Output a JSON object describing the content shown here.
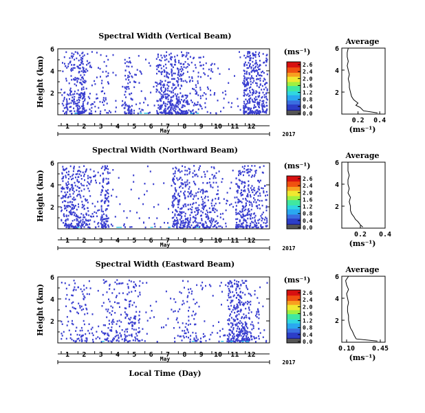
{
  "chart_data": [
    {
      "type": "heatmap",
      "title": "Spectral Width (Vertical Beam)",
      "ylabel": "Height (km)",
      "xlabel": "May",
      "year_label": "2017",
      "y_ticks": [
        "6",
        "4",
        "2"
      ],
      "ylim": [
        0,
        6
      ],
      "x_day_labels": [
        "1",
        "2",
        "3",
        "4",
        "5",
        "6",
        "7",
        "8",
        "9",
        "10",
        "11",
        "12"
      ],
      "density": [
        0.25,
        0.45,
        0.85,
        0.2,
        0.12,
        0.18,
        0.05,
        0.03,
        0.45,
        0.1,
        0.07,
        0.05,
        0.55,
        0.75,
        0.6,
        0.55,
        0.25,
        0.2,
        0.12,
        0.06,
        0.04,
        0.04,
        0.05,
        0.9,
        0.75,
        0.5
      ],
      "colorbar": {
        "unit": "(ms⁻¹)",
        "ticks": [
          "2.6",
          "2.4",
          "2.0",
          "1.6",
          "1.2",
          "0.8",
          "0.4",
          "0.0"
        ]
      },
      "average": {
        "title": "Average",
        "unit": "(ms⁻¹)",
        "x_ticks": [
          "0.2",
          "0.4"
        ],
        "xlim": [
          0.05,
          0.45
        ],
        "y_ticks": [
          "6",
          "4",
          "2"
        ],
        "profile_height": [
          0.1,
          0.3,
          0.6,
          0.8,
          1.0,
          1.3,
          1.6,
          2.0,
          2.4,
          2.8,
          3.2,
          3.6,
          4.0,
          4.4,
          4.8,
          5.2,
          5.6,
          6.0
        ],
        "profile_value": [
          0.38,
          0.25,
          0.22,
          0.18,
          0.2,
          0.16,
          0.14,
          0.13,
          0.12,
          0.12,
          0.11,
          0.12,
          0.11,
          0.1,
          0.11,
          0.1,
          0.1,
          0.11
        ]
      }
    },
    {
      "type": "heatmap",
      "title": "Spectral Width (Northward Beam)",
      "ylabel": "Height (km)",
      "xlabel": "May",
      "year_label": "2017",
      "y_ticks": [
        "6",
        "4",
        "2"
      ],
      "ylim": [
        0,
        6
      ],
      "x_day_labels": [
        "1",
        "2",
        "3",
        "4",
        "5",
        "6",
        "7",
        "8",
        "9",
        "10",
        "11",
        "12"
      ],
      "density": [
        0.6,
        0.55,
        0.5,
        0.3,
        0.15,
        0.7,
        0.05,
        0.03,
        0.04,
        0.03,
        0.05,
        0.04,
        0.03,
        0.03,
        0.6,
        0.55,
        0.45,
        0.4,
        0.35,
        0.3,
        0.1,
        0.05,
        0.6,
        0.55,
        0.4,
        0.3
      ],
      "colorbar": {
        "unit": "(ms⁻¹)",
        "ticks": [
          "2.6",
          "2.4",
          "2.0",
          "1.6",
          "1.2",
          "0.8",
          "0.4",
          "0.0"
        ]
      },
      "average": {
        "title": "Average",
        "unit": "(ms⁻¹)",
        "x_ticks": [
          "0.2",
          "0.4"
        ],
        "xlim": [
          0.05,
          0.4
        ],
        "y_ticks": [
          "6",
          "4",
          "2"
        ],
        "profile_height": [
          0.1,
          0.3,
          0.6,
          0.8,
          1.0,
          1.3,
          1.6,
          2.0,
          2.4,
          2.8,
          3.2,
          3.6,
          4.0,
          4.4,
          4.8,
          5.2,
          5.6,
          6.0
        ],
        "profile_value": [
          0.22,
          0.2,
          0.18,
          0.16,
          0.15,
          0.13,
          0.12,
          0.12,
          0.11,
          0.12,
          0.1,
          0.11,
          0.1,
          0.1,
          0.11,
          0.1,
          0.1,
          0.1
        ]
      }
    },
    {
      "type": "heatmap",
      "title": "Spectral Width (Eastward Beam)",
      "ylabel": "Height (km)",
      "xlabel": "May",
      "xlabel2": "Local Time (Day)",
      "year_label": "2017",
      "y_ticks": [
        "6",
        "4",
        "2"
      ],
      "ylim": [
        0,
        6
      ],
      "x_day_labels": [
        "1",
        "2",
        "3",
        "4",
        "5",
        "6",
        "7",
        "8",
        "9",
        "10",
        "11",
        "12"
      ],
      "density": [
        0.1,
        0.2,
        0.25,
        0.15,
        0.05,
        0.2,
        0.25,
        0.2,
        0.35,
        0.3,
        0.05,
        0.03,
        0.02,
        0.03,
        0.1,
        0.15,
        0.2,
        0.1,
        0.05,
        0.04,
        0.1,
        0.6,
        0.75,
        0.5,
        0.2,
        0.05
      ],
      "colorbar": {
        "unit": "(ms⁻¹)",
        "ticks": [
          "2.6",
          "2.4",
          "2.0",
          "1.6",
          "1.2",
          "0.8",
          "0.4",
          "0.0"
        ]
      },
      "average": {
        "title": "Average",
        "unit": "(ms⁻¹)",
        "x_ticks": [
          "0.10",
          "0.45"
        ],
        "xlim": [
          0.05,
          0.5
        ],
        "y_ticks": [
          "6",
          "4",
          "2"
        ],
        "profile_height": [
          0.1,
          0.3,
          0.6,
          0.8,
          1.0,
          1.3,
          1.6,
          2.0,
          2.4,
          2.8,
          3.2,
          3.6,
          4.0,
          4.4,
          4.8,
          5.2,
          5.6,
          6.0
        ],
        "profile_value": [
          0.42,
          0.2,
          0.18,
          0.17,
          0.16,
          0.14,
          0.13,
          0.12,
          0.12,
          0.11,
          0.11,
          0.12,
          0.11,
          0.1,
          0.12,
          0.1,
          0.09,
          0.12
        ]
      }
    }
  ],
  "colors": {
    "data": "#3a3fd0",
    "axis": "#000000"
  }
}
